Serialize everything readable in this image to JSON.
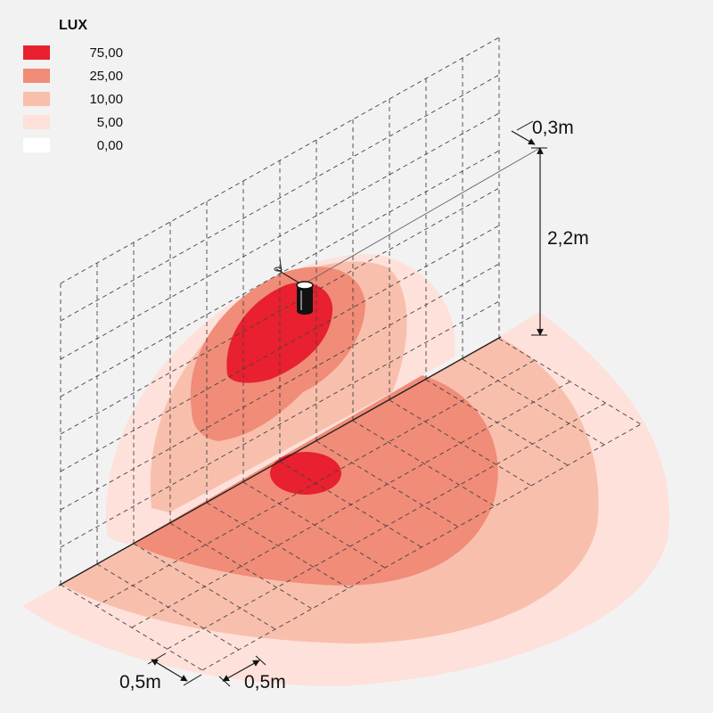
{
  "legend": {
    "title": "LUX",
    "items": [
      {
        "label": "75,00",
        "color": "#e8202f"
      },
      {
        "label": "25,00",
        "color": "#f08c78"
      },
      {
        "label": "10,00",
        "color": "#f8bfad"
      },
      {
        "label": "5,00",
        "color": "#fde1da"
      },
      {
        "label": "0,00",
        "color": "#ffffff"
      }
    ]
  },
  "dimensions": {
    "depth": "0,3m",
    "height": "2,2m",
    "grid_x": "0,5m",
    "grid_y": "0,5m"
  }
}
